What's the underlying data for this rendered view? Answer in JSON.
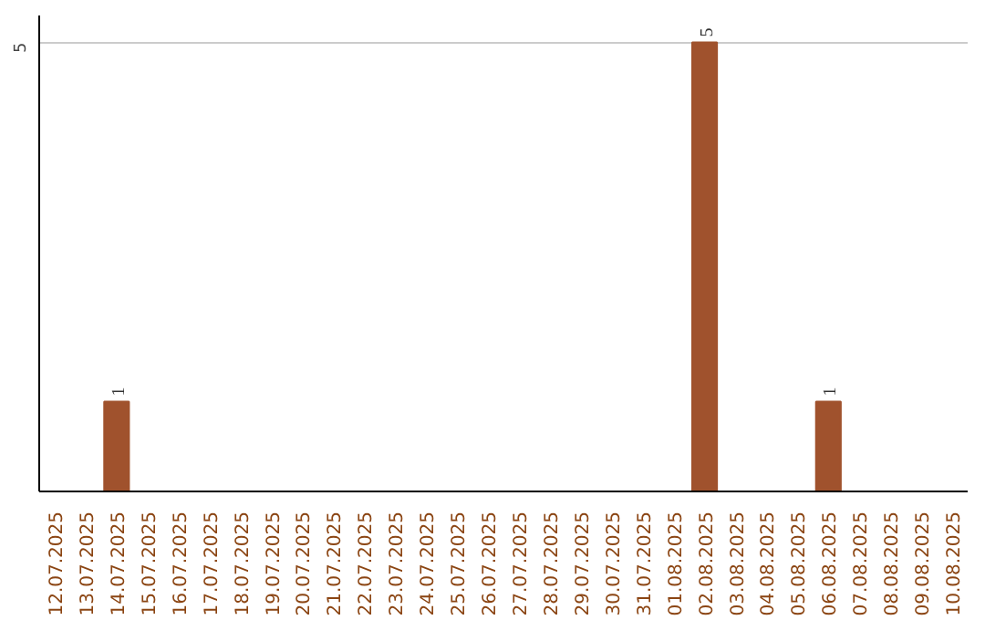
{
  "chart_data": {
    "type": "bar",
    "categories": [
      "12.07.2025",
      "13.07.2025",
      "14.07.2025",
      "15.07.2025",
      "16.07.2025",
      "17.07.2025",
      "18.07.2025",
      "19.07.2025",
      "20.07.2025",
      "21.07.2025",
      "22.07.2025",
      "23.07.2025",
      "24.07.2025",
      "25.07.2025",
      "26.07.2025",
      "27.07.2025",
      "28.07.2025",
      "29.07.2025",
      "30.07.2025",
      "31.07.2025",
      "01.08.2025",
      "02.08.2025",
      "03.08.2025",
      "04.08.2025",
      "05.08.2025",
      "06.08.2025",
      "07.08.2025",
      "08.08.2025",
      "09.08.2025",
      "10.08.2025"
    ],
    "values": [
      0,
      0,
      1,
      0,
      0,
      0,
      0,
      0,
      0,
      0,
      0,
      0,
      0,
      0,
      0,
      0,
      0,
      0,
      0,
      0,
      0,
      5,
      0,
      0,
      0,
      1,
      0,
      0,
      0,
      0
    ],
    "value_labels": [
      null,
      null,
      "1",
      null,
      null,
      null,
      null,
      null,
      null,
      null,
      null,
      null,
      null,
      null,
      null,
      null,
      null,
      null,
      null,
      null,
      null,
      "5",
      null,
      null,
      null,
      "1",
      null,
      null,
      null,
      null
    ],
    "color": "#a0522d",
    "ylim": [
      0,
      5.3
    ],
    "yticks": [
      5
    ],
    "grid": "y"
  }
}
